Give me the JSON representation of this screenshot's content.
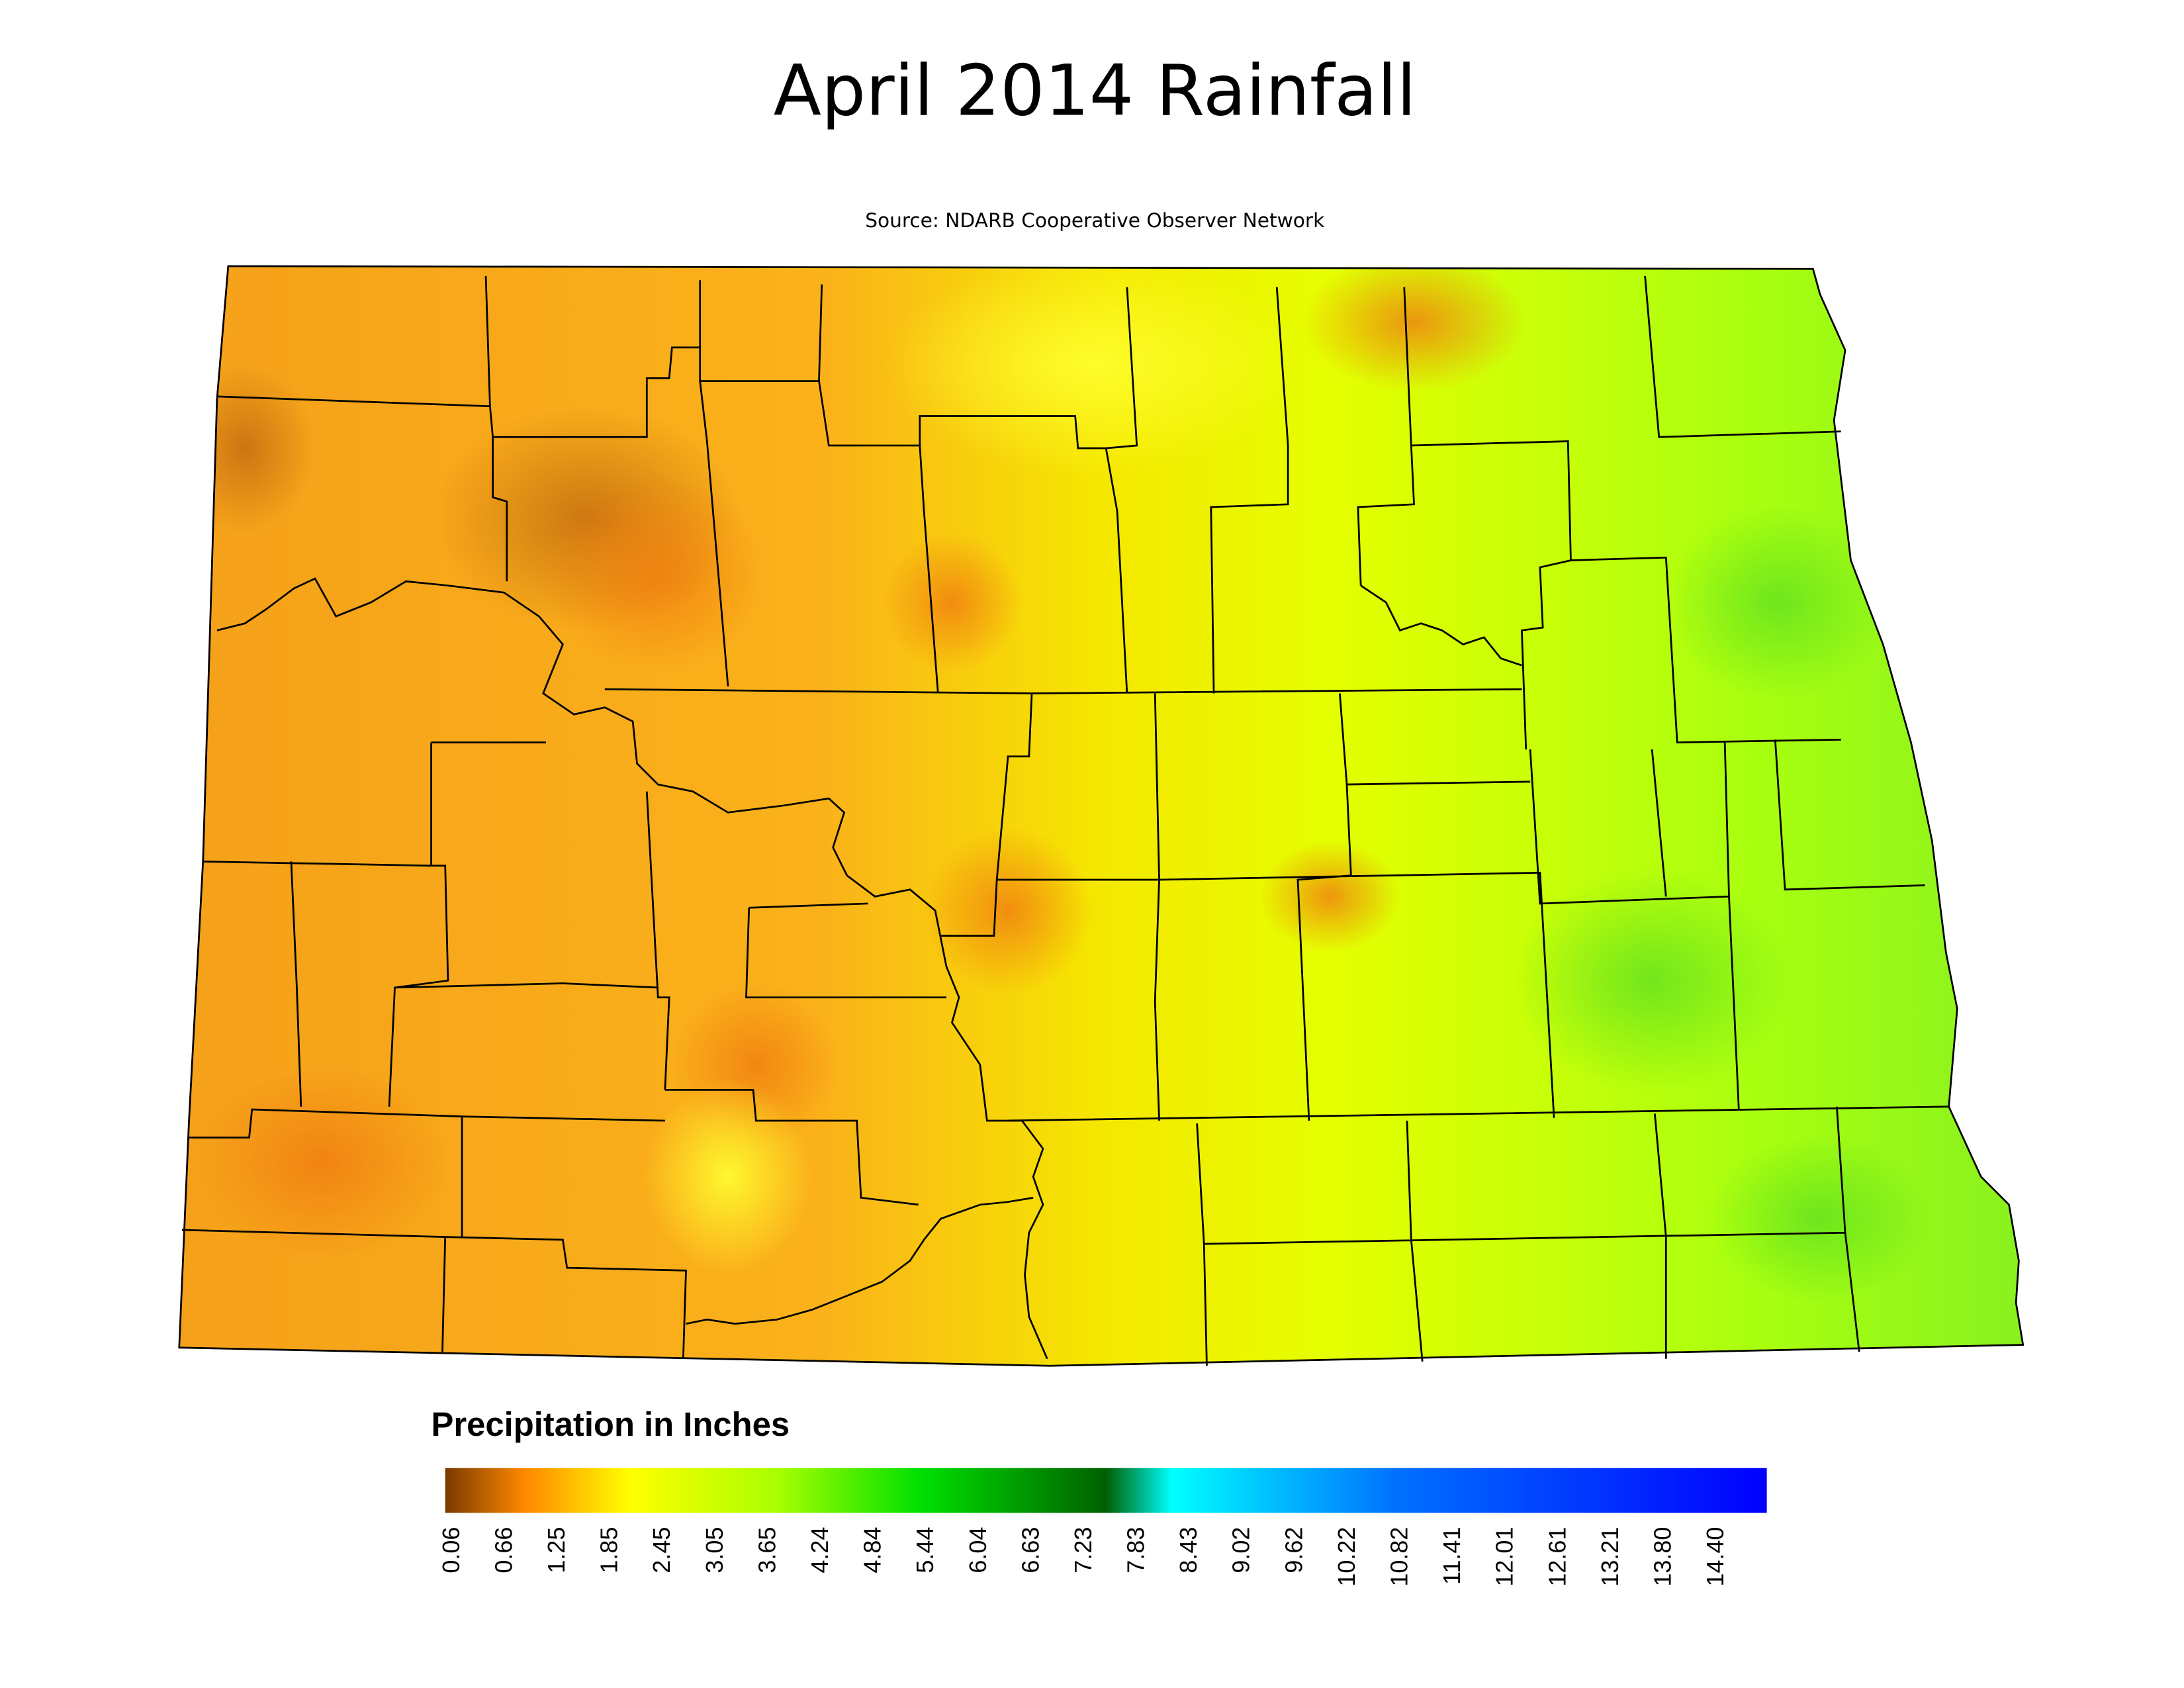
{
  "title": "April 2014 Rainfall",
  "source": "Source: NDARB Cooperative Observer Network",
  "legend": {
    "title": "Precipitation in Inches",
    "ticks": [
      "0.06",
      "0.66",
      "1.25",
      "1.85",
      "2.45",
      "3.05",
      "3.65",
      "4.24",
      "4.84",
      "5.44",
      "6.04",
      "6.63",
      "7.23",
      "7.83",
      "8.43",
      "9.02",
      "9.62",
      "10.22",
      "10.82",
      "11.41",
      "12.01",
      "12.61",
      "13.21",
      "13.80",
      "14.40"
    ]
  }
}
